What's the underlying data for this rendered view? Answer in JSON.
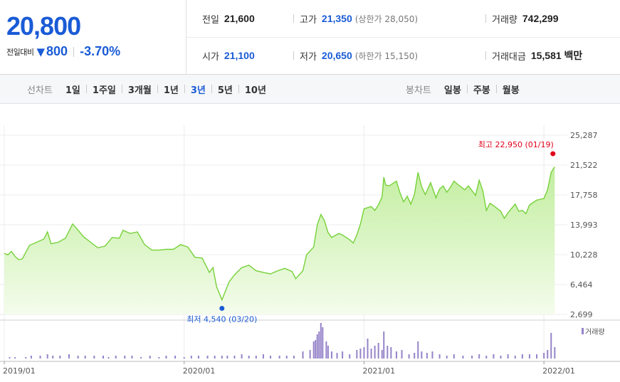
{
  "stock": {
    "price": "20,800",
    "change_label": "전일대비",
    "change_icon": "down-triangle-icon",
    "change_value": "800",
    "change_pct": "-3.70%",
    "colors": {
      "down": "#1a5bd6",
      "up": "#e0001a"
    }
  },
  "stats": {
    "prev_close": {
      "label": "전일",
      "value": "21,600"
    },
    "high": {
      "label": "고가",
      "value": "21,350",
      "sub": "(상한가 28,050)"
    },
    "volume": {
      "label": "거래량",
      "value": "742,299"
    },
    "open": {
      "label": "시가",
      "value": "21,100"
    },
    "low": {
      "label": "저가",
      "value": "20,650",
      "sub": "(하한가 15,150)"
    },
    "amount": {
      "label": "거래대금",
      "value": "15,581 백만"
    }
  },
  "line_tabs": {
    "heading": "선차트",
    "items": [
      "1일",
      "1주일",
      "3개월",
      "1년",
      "3년",
      "5년",
      "10년"
    ],
    "selected": "3년"
  },
  "candle_tabs": {
    "heading": "봉차트",
    "items": [
      "일봉",
      "주봉",
      "월봉"
    ]
  },
  "chart_data": {
    "type": "area",
    "x_ticks": [
      "2019/01",
      "2020/01",
      "2021/01",
      "2022/01"
    ],
    "y_ticks": [
      "25,287",
      "21,522",
      "17,758",
      "13,993",
      "10,228",
      "6,464",
      "2,699"
    ],
    "ylim": [
      2699,
      25287
    ],
    "x_range": [
      2019.0,
      2022.13
    ],
    "grid": true,
    "colors": {
      "line": "#76d13a",
      "fill_top": "#c2ee9f",
      "fill_bottom": "#f4fcec",
      "volume": "#9583c9"
    },
    "high_marker": {
      "label": "최고 22,950 (01/19)",
      "x": 2022.05,
      "y": 22950,
      "color": "#e0001a"
    },
    "low_marker": {
      "label": "최저 4,540 (03/20)",
      "x": 2020.21,
      "y": 4540,
      "color": "#1a5bd6"
    },
    "series": [
      {
        "values": [
          [
            2019.0,
            10400
          ],
          [
            2019.02,
            10200
          ],
          [
            2019.04,
            10650
          ],
          [
            2019.06,
            10000
          ],
          [
            2019.08,
            9600
          ],
          [
            2019.1,
            9700
          ],
          [
            2019.14,
            11400
          ],
          [
            2019.18,
            11800
          ],
          [
            2019.22,
            12200
          ],
          [
            2019.24,
            13100
          ],
          [
            2019.26,
            11600
          ],
          [
            2019.3,
            11800
          ],
          [
            2019.34,
            12300
          ],
          [
            2019.38,
            14100
          ],
          [
            2019.4,
            13600
          ],
          [
            2019.44,
            12500
          ],
          [
            2019.48,
            11800
          ],
          [
            2019.52,
            11100
          ],
          [
            2019.56,
            11300
          ],
          [
            2019.6,
            12400
          ],
          [
            2019.64,
            12300
          ],
          [
            2019.66,
            13300
          ],
          [
            2019.7,
            12900
          ],
          [
            2019.74,
            13100
          ],
          [
            2019.78,
            11500
          ],
          [
            2019.82,
            10800
          ],
          [
            2019.86,
            10800
          ],
          [
            2019.9,
            10900
          ],
          [
            2019.94,
            10900
          ],
          [
            2019.98,
            11500
          ],
          [
            2020.02,
            11200
          ],
          [
            2020.06,
            9900
          ],
          [
            2020.1,
            9800
          ],
          [
            2020.14,
            8000
          ],
          [
            2020.16,
            8600
          ],
          [
            2020.18,
            6200
          ],
          [
            2020.21,
            4540
          ],
          [
            2020.25,
            6800
          ],
          [
            2020.28,
            7700
          ],
          [
            2020.32,
            8600
          ],
          [
            2020.36,
            8900
          ],
          [
            2020.4,
            8200
          ],
          [
            2020.44,
            8000
          ],
          [
            2020.48,
            7800
          ],
          [
            2020.52,
            8200
          ],
          [
            2020.56,
            8500
          ],
          [
            2020.6,
            8100
          ],
          [
            2020.62,
            7200
          ],
          [
            2020.66,
            8200
          ],
          [
            2020.68,
            10200
          ],
          [
            2020.72,
            11200
          ],
          [
            2020.74,
            14000
          ],
          [
            2020.76,
            15300
          ],
          [
            2020.78,
            14500
          ],
          [
            2020.8,
            13000
          ],
          [
            2020.82,
            12400
          ],
          [
            2020.86,
            12900
          ],
          [
            2020.88,
            12700
          ],
          [
            2020.92,
            12100
          ],
          [
            2020.94,
            11700
          ],
          [
            2020.96,
            12700
          ],
          [
            2020.98,
            14100
          ],
          [
            2021.0,
            16000
          ],
          [
            2021.04,
            16300
          ],
          [
            2021.06,
            15800
          ],
          [
            2021.08,
            16500
          ],
          [
            2021.1,
            17500
          ],
          [
            2021.11,
            20000
          ],
          [
            2021.12,
            19000
          ],
          [
            2021.14,
            18900
          ],
          [
            2021.18,
            19500
          ],
          [
            2021.2,
            18000
          ],
          [
            2021.22,
            16900
          ],
          [
            2021.24,
            17600
          ],
          [
            2021.26,
            16600
          ],
          [
            2021.28,
            17800
          ],
          [
            2021.3,
            20600
          ],
          [
            2021.32,
            18800
          ],
          [
            2021.34,
            17800
          ],
          [
            2021.37,
            19300
          ],
          [
            2021.4,
            17400
          ],
          [
            2021.42,
            18500
          ],
          [
            2021.44,
            18900
          ],
          [
            2021.46,
            18100
          ],
          [
            2021.48,
            18700
          ],
          [
            2021.5,
            19500
          ],
          [
            2021.52,
            19100
          ],
          [
            2021.56,
            18400
          ],
          [
            2021.58,
            18900
          ],
          [
            2021.62,
            17700
          ],
          [
            2021.64,
            19600
          ],
          [
            2021.66,
            18300
          ],
          [
            2021.68,
            15800
          ],
          [
            2021.7,
            16700
          ],
          [
            2021.72,
            16400
          ],
          [
            2021.76,
            15700
          ],
          [
            2021.78,
            14800
          ],
          [
            2021.8,
            15500
          ],
          [
            2021.84,
            16600
          ],
          [
            2021.86,
            15700
          ],
          [
            2021.88,
            15800
          ],
          [
            2021.9,
            15400
          ],
          [
            2021.92,
            16500
          ],
          [
            2021.96,
            17100
          ],
          [
            2022.0,
            17300
          ],
          [
            2022.02,
            18400
          ],
          [
            2022.04,
            20600
          ],
          [
            2022.06,
            21300
          ]
        ]
      },
      {
        "name": "거래량",
        "values": [
          [
            2019.03,
            1
          ],
          [
            2019.06,
            1
          ],
          [
            2019.12,
            1
          ],
          [
            2019.15,
            2
          ],
          [
            2019.2,
            2
          ],
          [
            2019.24,
            3
          ],
          [
            2019.27,
            2
          ],
          [
            2019.31,
            2
          ],
          [
            2019.36,
            3
          ],
          [
            2019.41,
            2
          ],
          [
            2019.45,
            2
          ],
          [
            2019.5,
            2
          ],
          [
            2019.55,
            2
          ],
          [
            2019.58,
            1
          ],
          [
            2019.62,
            2
          ],
          [
            2019.67,
            2
          ],
          [
            2019.71,
            2
          ],
          [
            2019.76,
            1
          ],
          [
            2019.81,
            2
          ],
          [
            2019.86,
            1
          ],
          [
            2019.9,
            2
          ],
          [
            2019.95,
            2
          ],
          [
            2020.0,
            1
          ],
          [
            2020.04,
            2
          ],
          [
            2020.08,
            2
          ],
          [
            2020.13,
            2
          ],
          [
            2020.17,
            2
          ],
          [
            2020.21,
            2
          ],
          [
            2020.24,
            2
          ],
          [
            2020.28,
            2
          ],
          [
            2020.32,
            3
          ],
          [
            2020.36,
            2
          ],
          [
            2020.4,
            2
          ],
          [
            2020.44,
            3
          ],
          [
            2020.48,
            2
          ],
          [
            2020.53,
            2
          ],
          [
            2020.57,
            2
          ],
          [
            2020.61,
            2
          ],
          [
            2020.66,
            5
          ],
          [
            2020.7,
            6
          ],
          [
            2020.72,
            12
          ],
          [
            2020.73,
            13
          ],
          [
            2020.74,
            17
          ],
          [
            2020.75,
            19
          ],
          [
            2020.76,
            25
          ],
          [
            2020.77,
            22
          ],
          [
            2020.79,
            12
          ],
          [
            2020.8,
            9
          ],
          [
            2020.82,
            5
          ],
          [
            2020.85,
            4
          ],
          [
            2020.88,
            5
          ],
          [
            2020.92,
            3
          ],
          [
            2020.96,
            6
          ],
          [
            2020.98,
            7
          ],
          [
            2021.0,
            8
          ],
          [
            2021.02,
            14
          ],
          [
            2021.04,
            7
          ],
          [
            2021.06,
            9
          ],
          [
            2021.08,
            11
          ],
          [
            2021.1,
            6
          ],
          [
            2021.11,
            19
          ],
          [
            2021.13,
            9
          ],
          [
            2021.15,
            8
          ],
          [
            2021.18,
            5
          ],
          [
            2021.21,
            6
          ],
          [
            2021.25,
            3
          ],
          [
            2021.28,
            4
          ],
          [
            2021.3,
            12
          ],
          [
            2021.32,
            5
          ],
          [
            2021.35,
            4
          ],
          [
            2021.38,
            5
          ],
          [
            2021.42,
            3
          ],
          [
            2021.46,
            2
          ],
          [
            2021.5,
            3
          ],
          [
            2021.55,
            2
          ],
          [
            2021.6,
            2
          ],
          [
            2021.64,
            3
          ],
          [
            2021.68,
            2
          ],
          [
            2021.72,
            3
          ],
          [
            2021.76,
            2
          ],
          [
            2021.8,
            3
          ],
          [
            2021.84,
            2
          ],
          [
            2021.88,
            3
          ],
          [
            2021.92,
            3
          ],
          [
            2021.96,
            3
          ],
          [
            2022.0,
            4
          ],
          [
            2022.02,
            6
          ],
          [
            2022.04,
            18
          ],
          [
            2022.06,
            8
          ]
        ]
      }
    ]
  }
}
